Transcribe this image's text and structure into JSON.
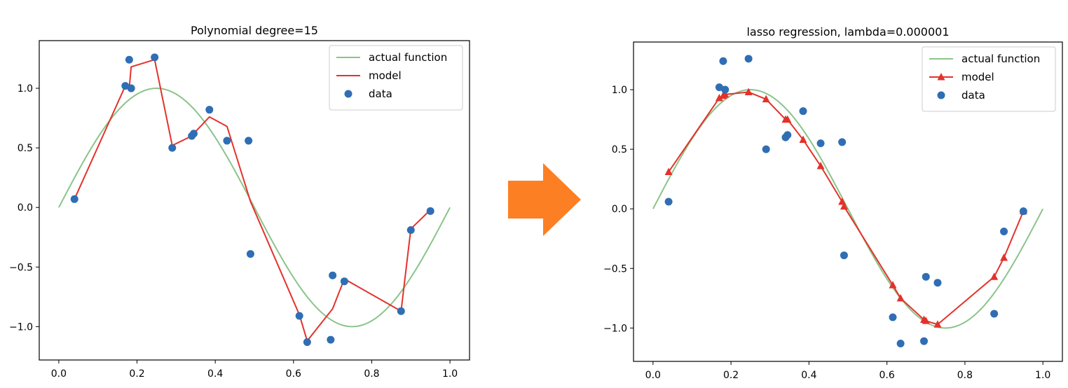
{
  "arrow_color": "#fd7f23",
  "chart_data": [
    {
      "type": "line",
      "title": "Polynomial degree=15",
      "xlabel": "",
      "ylabel": "",
      "xlim": [
        -0.05,
        1.05
      ],
      "ylim": [
        -1.28,
        1.4
      ],
      "xticks": [
        0.0,
        0.2,
        0.4,
        0.6,
        0.8,
        1.0
      ],
      "xtick_labels": [
        "0.0",
        "0.2",
        "0.4",
        "0.6",
        "0.8",
        "1.0"
      ],
      "yticks": [
        -1.0,
        -0.5,
        0.0,
        0.5,
        1.0
      ],
      "ytick_labels": [
        "−1.0",
        "−0.5",
        "0.0",
        "0.5",
        "1.0"
      ],
      "grid": false,
      "legend": {
        "placement": "top-right",
        "entries": [
          "actual function",
          "model",
          "data"
        ]
      },
      "series": [
        {
          "name": "actual function",
          "kind": "line",
          "color": "#8ac48a",
          "function": "sin(2*pi*x)",
          "x_range": [
            0.0,
            1.0
          ]
        },
        {
          "name": "model",
          "kind": "line",
          "color": "#e3322b",
          "marker": "none",
          "x": [
            0.04,
            0.17,
            0.18,
            0.185,
            0.245,
            0.29,
            0.34,
            0.345,
            0.385,
            0.43,
            0.49,
            0.615,
            0.635,
            0.7,
            0.73,
            0.875,
            0.9,
            0.95
          ],
          "y": [
            0.07,
            1.02,
            1.0,
            1.18,
            1.24,
            0.52,
            0.6,
            0.62,
            0.76,
            0.68,
            0.05,
            -0.9,
            -1.12,
            -0.85,
            -0.6,
            -0.87,
            -0.18,
            -0.02
          ]
        },
        {
          "name": "data",
          "kind": "scatter",
          "color": "#2f6eb4",
          "x": [
            0.04,
            0.17,
            0.18,
            0.185,
            0.245,
            0.29,
            0.34,
            0.345,
            0.385,
            0.43,
            0.485,
            0.49,
            0.615,
            0.635,
            0.695,
            0.7,
            0.73,
            0.875,
            0.9,
            0.95
          ],
          "y": [
            0.07,
            1.02,
            1.24,
            1.0,
            1.26,
            0.5,
            0.6,
            0.62,
            0.82,
            0.56,
            0.56,
            -0.39,
            -0.91,
            -1.13,
            -1.11,
            -0.57,
            -0.62,
            -0.87,
            -0.19,
            -0.03
          ]
        }
      ]
    },
    {
      "type": "line",
      "title": "lasso regression, lambda=0.000001",
      "xlabel": "",
      "ylabel": "",
      "xlim": [
        -0.05,
        1.05
      ],
      "ylim": [
        -1.28,
        1.4
      ],
      "xticks": [
        0.0,
        0.2,
        0.4,
        0.6,
        0.8,
        1.0
      ],
      "xtick_labels": [
        "0.0",
        "0.2",
        "0.4",
        "0.6",
        "0.8",
        "1.0"
      ],
      "yticks": [
        -1.0,
        -0.5,
        0.0,
        0.5,
        1.0
      ],
      "ytick_labels": [
        "−1.0",
        "−0.5",
        "0.0",
        "0.5",
        "1.0"
      ],
      "grid": false,
      "legend": {
        "placement": "top-right",
        "entries": [
          "actual function",
          "model",
          "data"
        ]
      },
      "series": [
        {
          "name": "actual function",
          "kind": "line",
          "color": "#8ac48a",
          "function": "sin(2*pi*x)",
          "x_range": [
            0.0,
            1.0
          ]
        },
        {
          "name": "model",
          "kind": "line",
          "color": "#e3322b",
          "marker": "triangle",
          "x": [
            0.04,
            0.17,
            0.18,
            0.185,
            0.245,
            0.29,
            0.34,
            0.345,
            0.385,
            0.43,
            0.485,
            0.49,
            0.615,
            0.635,
            0.695,
            0.7,
            0.73,
            0.875,
            0.9,
            0.95
          ],
          "y": [
            0.31,
            0.93,
            0.95,
            0.96,
            0.98,
            0.92,
            0.75,
            0.75,
            0.58,
            0.36,
            0.06,
            0.02,
            -0.64,
            -0.75,
            -0.93,
            -0.94,
            -0.97,
            -0.57,
            -0.41,
            -0.02
          ]
        },
        {
          "name": "data",
          "kind": "scatter",
          "color": "#2f6eb4",
          "x": [
            0.04,
            0.17,
            0.18,
            0.185,
            0.245,
            0.29,
            0.34,
            0.345,
            0.385,
            0.43,
            0.485,
            0.49,
            0.615,
            0.635,
            0.695,
            0.7,
            0.73,
            0.875,
            0.9,
            0.95
          ],
          "y": [
            0.06,
            1.02,
            1.24,
            1.0,
            1.26,
            0.5,
            0.6,
            0.62,
            0.82,
            0.55,
            0.56,
            -0.39,
            -0.91,
            -1.13,
            -1.11,
            -0.57,
            -0.62,
            -0.88,
            -0.19,
            -0.02
          ]
        }
      ]
    }
  ]
}
